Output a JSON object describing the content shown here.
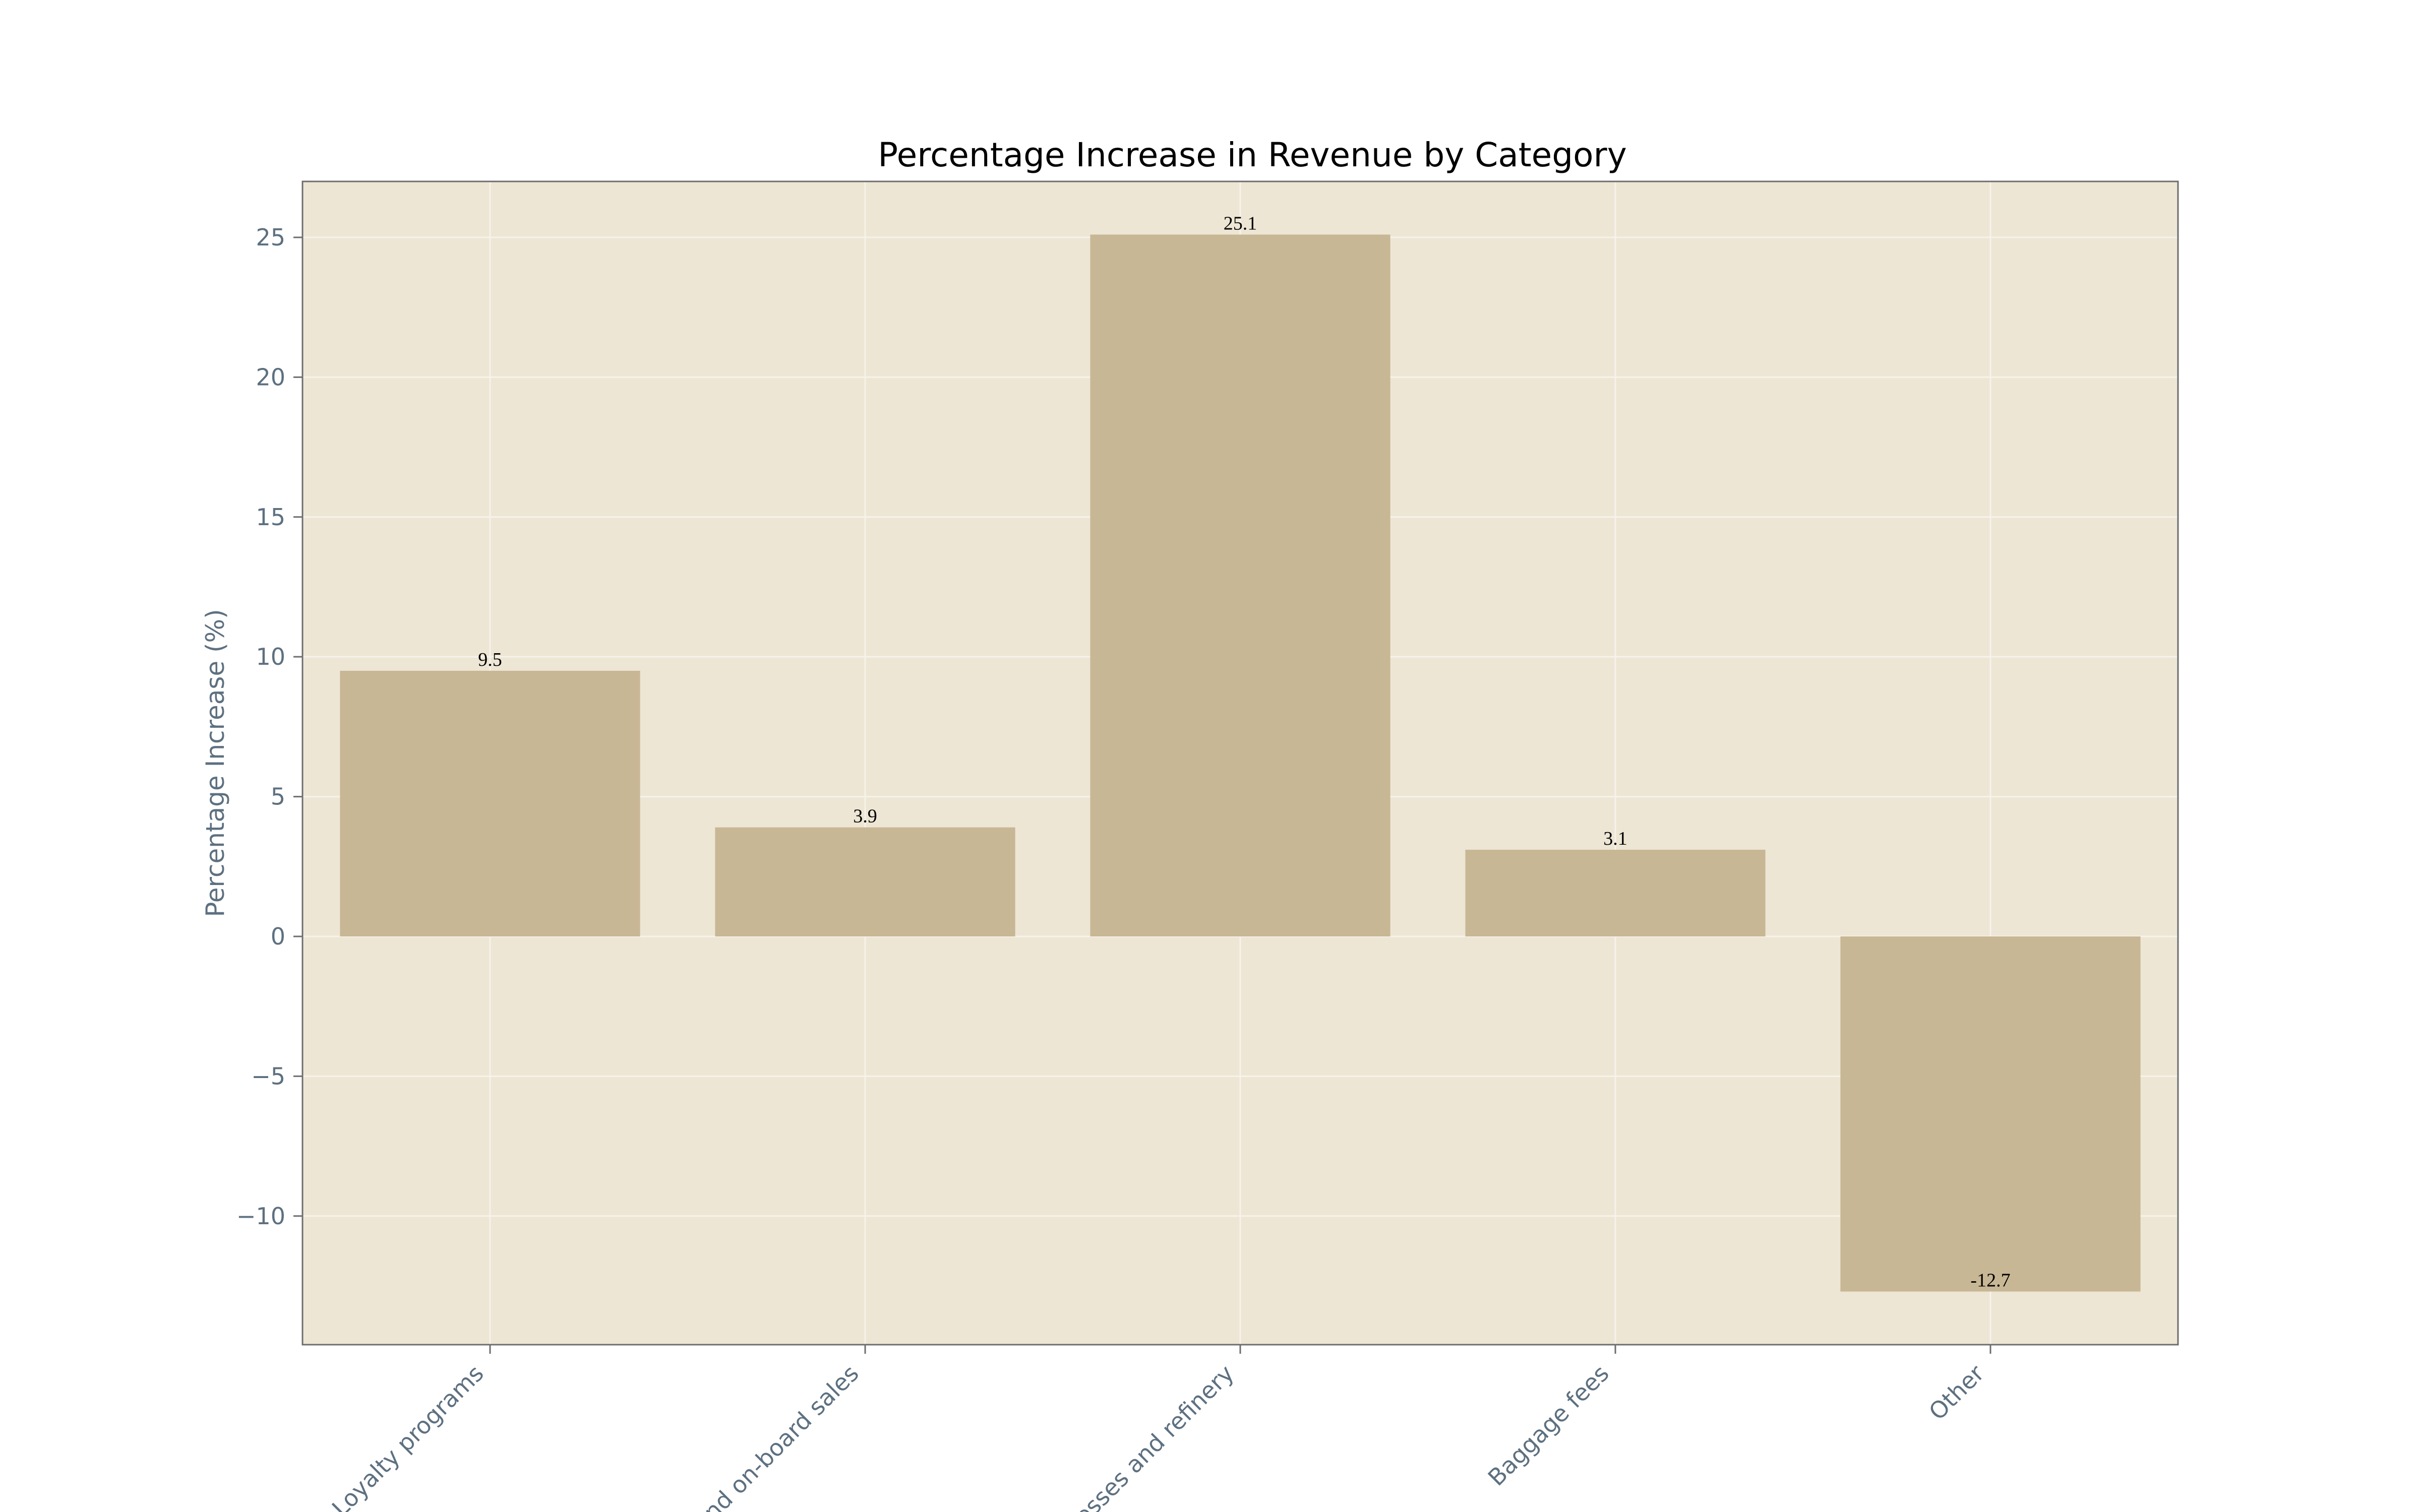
{
  "chart_data": {
    "type": "bar",
    "title": "Percentage Increase in Revenue by Category",
    "xlabel": "",
    "ylabel": "Percentage Increase (%)",
    "categories": [
      "Loyalty programs",
      "Food and on-board sales",
      "Businesses and refinery",
      "Baggage fees",
      "Other"
    ],
    "values": [
      9.5,
      3.9,
      25.1,
      3.1,
      -12.7
    ],
    "value_labels": [
      "9.5",
      "3.9",
      "25.1",
      "3.1",
      "-12.7"
    ],
    "ylim": [
      -14.6,
      27.0
    ],
    "yticks": [
      25,
      20,
      15,
      10,
      5,
      0,
      -5,
      -10
    ],
    "ytick_labels": [
      "25",
      "20",
      "15",
      "10",
      "5",
      "0",
      "−5",
      "−10"
    ],
    "grid": true,
    "legend": "none",
    "colors": {
      "bar": "#c8b795",
      "plot_background": "#ede6d5",
      "grid": "#f7f3ea",
      "axis": "#6e6e6e",
      "tick_text": "#5d7080"
    }
  }
}
